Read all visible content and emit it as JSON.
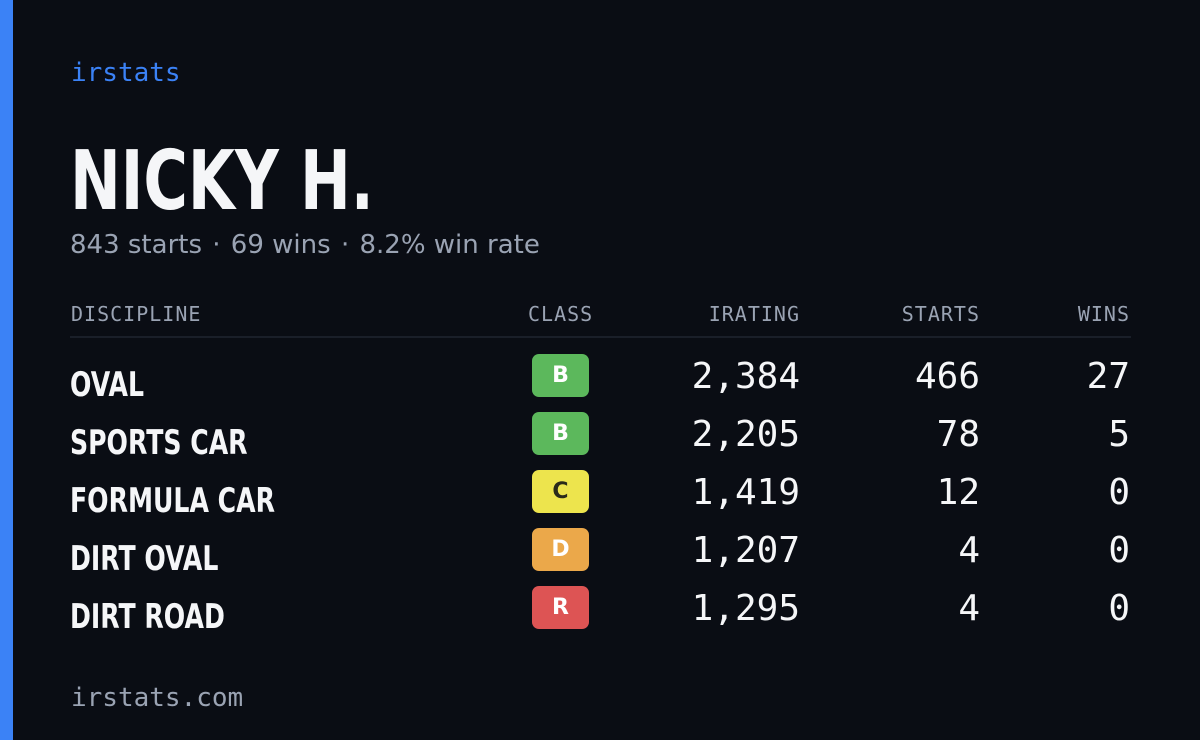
{
  "brand": "irstats",
  "player": {
    "name": "NICKY H.",
    "starts_text": "843 starts",
    "wins_text": "69 wins",
    "win_rate_text": "8.2% win rate",
    "separator": "·"
  },
  "table": {
    "headers": {
      "discipline": "DISCIPLINE",
      "class": "CLASS",
      "irating": "IRATING",
      "starts": "STARTS",
      "wins": "WINS"
    },
    "rows": [
      {
        "discipline": "OVAL",
        "class": "B",
        "class_color": "#5cb85c",
        "class_text_color": "#ffffff",
        "irating": "2,384",
        "starts": "466",
        "wins": "27"
      },
      {
        "discipline": "SPORTS CAR",
        "class": "B",
        "class_color": "#5cb85c",
        "class_text_color": "#ffffff",
        "irating": "2,205",
        "starts": "78",
        "wins": "5"
      },
      {
        "discipline": "FORMULA CAR",
        "class": "C",
        "class_color": "#ede44d",
        "class_text_color": "#2a2a1a",
        "irating": "1,419",
        "starts": "12",
        "wins": "0"
      },
      {
        "discipline": "DIRT OVAL",
        "class": "D",
        "class_color": "#eba84a",
        "class_text_color": "#ffffff",
        "irating": "1,207",
        "starts": "4",
        "wins": "0"
      },
      {
        "discipline": "DIRT ROAD",
        "class": "R",
        "class_color": "#dd5454",
        "class_text_color": "#ffffff",
        "irating": "1,295",
        "starts": "4",
        "wins": "0"
      }
    ]
  },
  "footer": {
    "domain": "irstats.com"
  },
  "colors": {
    "background": "#0a0d14",
    "accent": "#3b82f6",
    "text_primary": "#f5f6f8",
    "text_muted": "#9aa3b3"
  }
}
